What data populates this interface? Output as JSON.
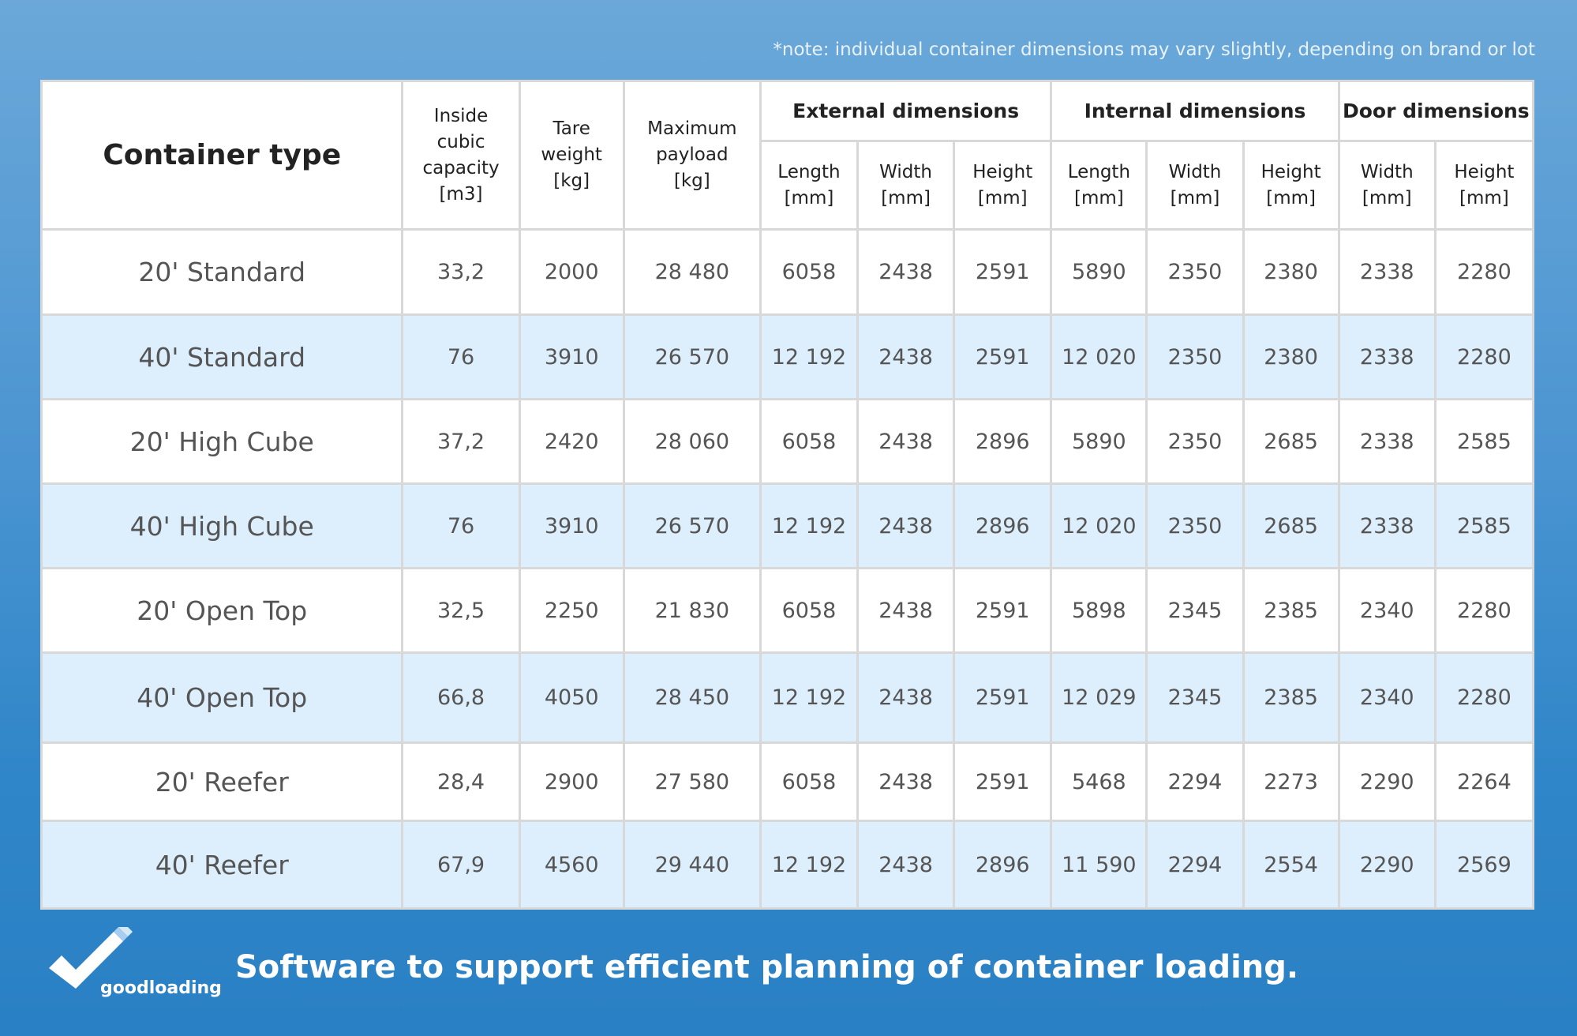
{
  "note": "*note: individual container dimensions may vary slightly, depending on brand or lot",
  "headers": {
    "container_type": "Container type",
    "capacity": [
      "Inside",
      "cubic",
      "capacity",
      "[m3]"
    ],
    "tare": [
      "Tare",
      "weight",
      "[kg]"
    ],
    "payload": [
      "Maximum",
      "payload",
      "[kg]"
    ],
    "groups": [
      "External dimensions",
      "Internal dimensions",
      "Door dimensions"
    ],
    "sub": [
      [
        "Length",
        "[mm]"
      ],
      [
        "Width",
        "[mm]"
      ],
      [
        "Height",
        "[mm]"
      ],
      [
        "Length",
        "[mm]"
      ],
      [
        "Width",
        "[mm]"
      ],
      [
        "Height",
        "[mm]"
      ],
      [
        "Width",
        "[mm]"
      ],
      [
        "Height",
        "[mm]"
      ]
    ]
  },
  "rows": [
    [
      "20' Standard",
      "33,2",
      "2000",
      "28 480",
      "6058",
      "2438",
      "2591",
      "5890",
      "2350",
      "2380",
      "2338",
      "2280"
    ],
    [
      "40' Standard",
      "76",
      "3910",
      "26 570",
      "12 192",
      "2438",
      "2591",
      "12 020",
      "2350",
      "2380",
      "2338",
      "2280"
    ],
    [
      "20' High Cube",
      "37,2",
      "2420",
      "28 060",
      "6058",
      "2438",
      "2896",
      "5890",
      "2350",
      "2685",
      "2338",
      "2585"
    ],
    [
      "40' High Cube",
      "76",
      "3910",
      "26 570",
      "12 192",
      "2438",
      "2896",
      "12 020",
      "2350",
      "2685",
      "2338",
      "2585"
    ],
    [
      "20' Open Top",
      "32,5",
      "2250",
      "21 830",
      "6058",
      "2438",
      "2591",
      "5898",
      "2345",
      "2385",
      "2340",
      "2280"
    ],
    [
      "40' Open Top",
      "66,8",
      "4050",
      "28 450",
      "12 192",
      "2438",
      "2591",
      "12 029",
      "2345",
      "2385",
      "2340",
      "2280"
    ],
    [
      "20' Reefer",
      "28,4",
      "2900",
      "27 580",
      "6058",
      "2438",
      "2591",
      "5468",
      "2294",
      "2273",
      "2290",
      "2264"
    ],
    [
      "40' Reefer",
      "67,9",
      "4560",
      "29 440",
      "12 192",
      "2438",
      "2896",
      "11 590",
      "2294",
      "2554",
      "2290",
      "2569"
    ]
  ],
  "footer": {
    "logo_text": "goodloading",
    "tagline": "Software to support efficient planning of container loading."
  },
  "colors": {
    "alt_row": "#ddeefc",
    "border": "#d8d8d8",
    "background_top": "#6ba8d9",
    "background_bottom": "#2a80c4"
  }
}
